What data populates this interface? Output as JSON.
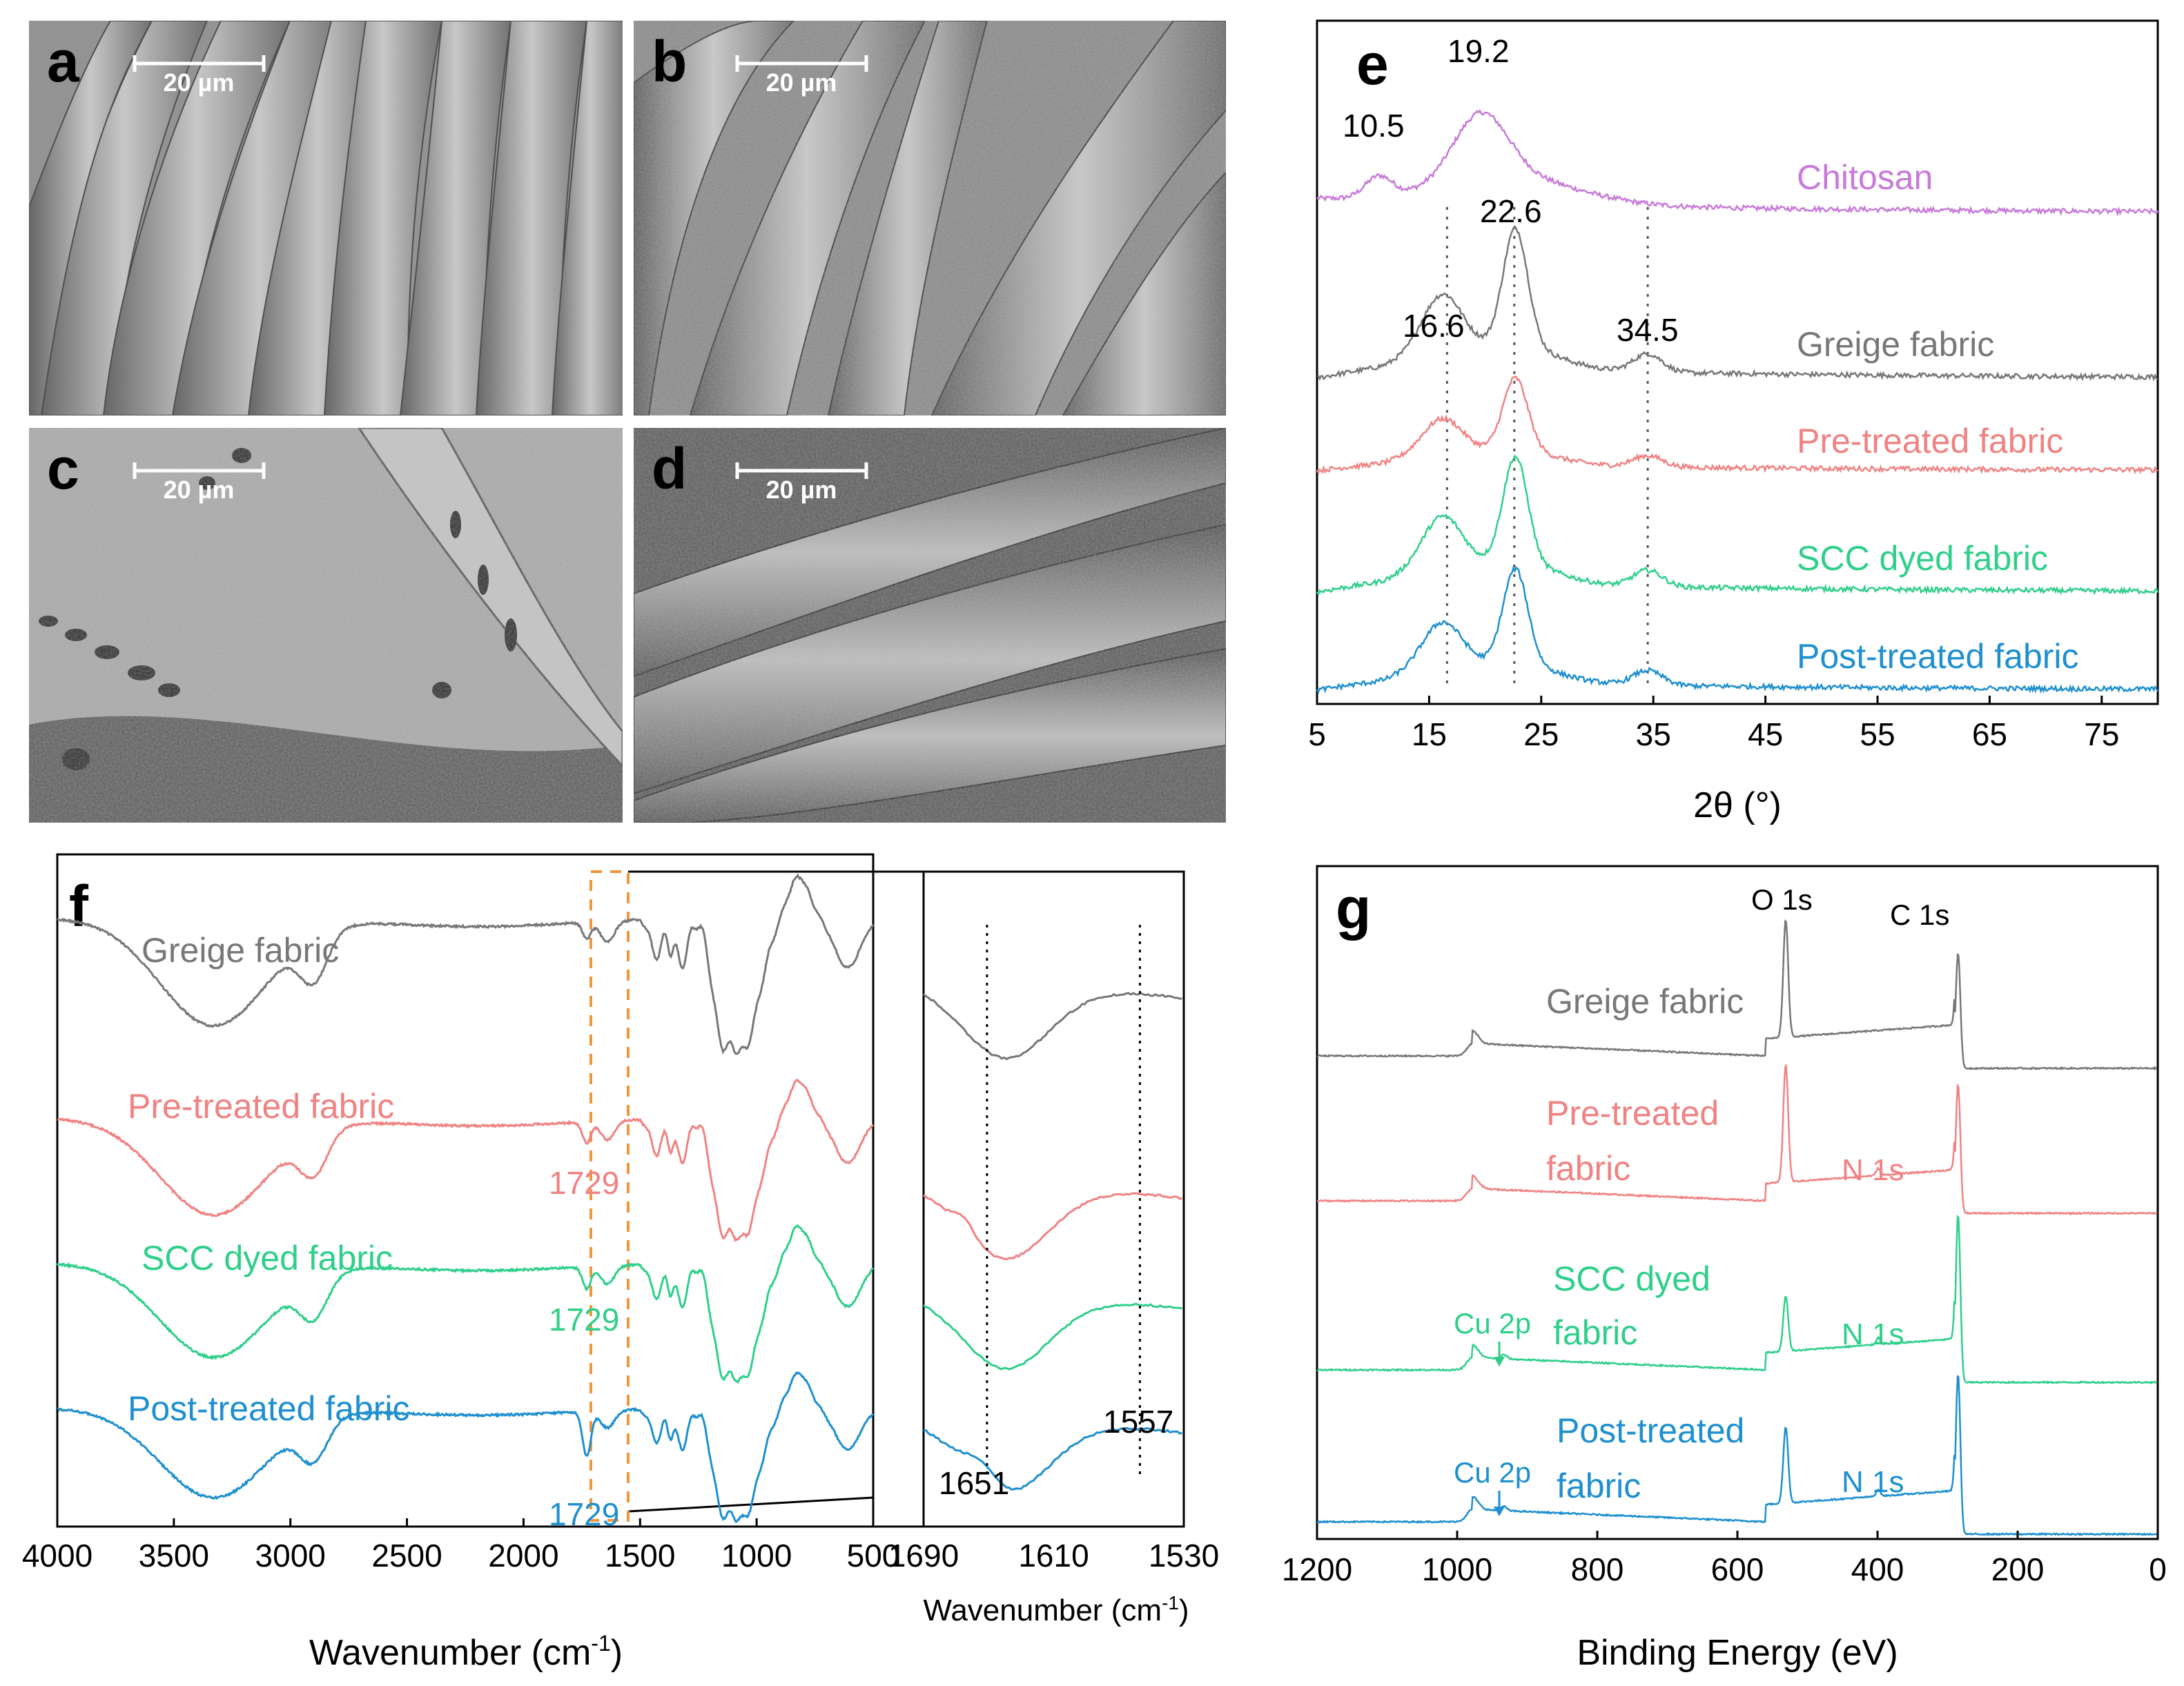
{
  "sem": {
    "panels": [
      {
        "label": "a",
        "scale": "20 µm"
      },
      {
        "label": "b",
        "scale": "20 µm"
      },
      {
        "label": "c",
        "scale": "20 µm"
      },
      {
        "label": "d",
        "scale": "20 µm"
      }
    ]
  },
  "chart_data": [
    {
      "panel": "e",
      "type": "line",
      "xlabel": "2θ (°)",
      "ylabel": "",
      "xlim": [
        5,
        80
      ],
      "xticks": [
        5,
        15,
        25,
        35,
        45,
        55,
        65,
        75
      ],
      "series": [
        {
          "name": "Chitosan",
          "color": "#c77ad9",
          "peaks": [
            10.5,
            19.2
          ]
        },
        {
          "name": "Greige fabric",
          "color": "#777777",
          "peaks": [
            16.6,
            22.6,
            34.5
          ]
        },
        {
          "name": "Pre-treated fabric",
          "color": "#f08282",
          "peaks": [
            16.6,
            22.6,
            34.5
          ]
        },
        {
          "name": "SCC dyed fabric",
          "color": "#2fcf8a",
          "peaks": [
            16.6,
            22.6,
            34.5
          ]
        },
        {
          "name": "Post-treated fabric",
          "color": "#1e8fcf",
          "peaks": [
            16.6,
            22.6,
            34.5
          ]
        }
      ],
      "peak_labels": [
        "10.5",
        "19.2",
        "16.6",
        "22.6",
        "34.5"
      ],
      "reference_lines": [
        16.6,
        22.6,
        34.5
      ]
    },
    {
      "panel": "f",
      "type": "line",
      "xlabel": "Wavenumber (cm-1)",
      "xlim": [
        4000,
        500
      ],
      "xticks": [
        4000,
        3500,
        3000,
        2500,
        2000,
        1500,
        1000,
        500
      ],
      "series": [
        {
          "name": "Greige fabric",
          "color": "#777777"
        },
        {
          "name": "Pre-treated fabric",
          "color": "#f08282",
          "annotation": "1729"
        },
        {
          "name": "SCC dyed fabric",
          "color": "#2fcf8a",
          "annotation": "1729"
        },
        {
          "name": "Post-treated fabric",
          "color": "#1e8fcf",
          "annotation": "1729"
        }
      ],
      "highlight_range": [
        1729,
        1557
      ],
      "inset": {
        "xlabel": "Wavenumber (cm-1)",
        "xlim": [
          1690,
          1530
        ],
        "xticks": [
          1690,
          1610,
          1530
        ],
        "reference_lines": [
          1651,
          1557
        ],
        "annotations": [
          "1651",
          "1557"
        ]
      }
    },
    {
      "panel": "g",
      "type": "line",
      "xlabel": "Binding Energy (eV)",
      "xlim": [
        1200,
        0
      ],
      "xticks": [
        1200,
        1000,
        800,
        600,
        400,
        200,
        0
      ],
      "series": [
        {
          "name": "Greige fabric",
          "color": "#777777",
          "peaks": [
            "O 1s",
            "C 1s"
          ]
        },
        {
          "name": "Pre-treated fabric",
          "color": "#f08282",
          "peaks": [
            "N 1s"
          ]
        },
        {
          "name": "SCC dyed fabric",
          "color": "#2fcf8a",
          "peaks": [
            "Cu 2p",
            "N 1s"
          ]
        },
        {
          "name": "Post-treated fabric",
          "color": "#1e8fcf",
          "peaks": [
            "Cu 2p",
            "N 1s"
          ]
        }
      ],
      "peak_positions": {
        "O 1s": 531,
        "C 1s": 285,
        "N 1s": 399,
        "Cu 2p": 933
      }
    }
  ],
  "labels": {
    "e": {
      "panel": "e",
      "chitosan": "Chitosan",
      "greige": "Greige fabric",
      "pre": "Pre-treated fabric",
      "scc": "SCC dyed fabric",
      "post": "Post-treated fabric",
      "p105": "10.5",
      "p192": "19.2",
      "p166": "16.6",
      "p226": "22.6",
      "p345": "34.5",
      "xlabel": "2θ (°)"
    },
    "f": {
      "panel": "f",
      "greige": "Greige fabric",
      "pre": "Pre-treated fabric",
      "scc": "SCC dyed fabric",
      "post": "Post-treated fabric",
      "a1729": "1729",
      "a1651": "1651",
      "a1557": "1557",
      "xlabel_main": "Wavenumber (cm",
      "xlabel_inset": "Wavenumber (cm",
      "sup": "-1",
      "close": ")"
    },
    "g": {
      "panel": "g",
      "o1s": "O 1s",
      "c1s": "C 1s",
      "n1s": "N 1s",
      "cu2p": "Cu 2p",
      "greige": "Greige fabric",
      "pre1": "Pre-treated",
      "pre2": "fabric",
      "scc1": "SCC dyed",
      "scc2": "fabric",
      "post1": "Post-treated",
      "post2": "fabric",
      "xlabel": "Binding Energy (eV)"
    }
  }
}
